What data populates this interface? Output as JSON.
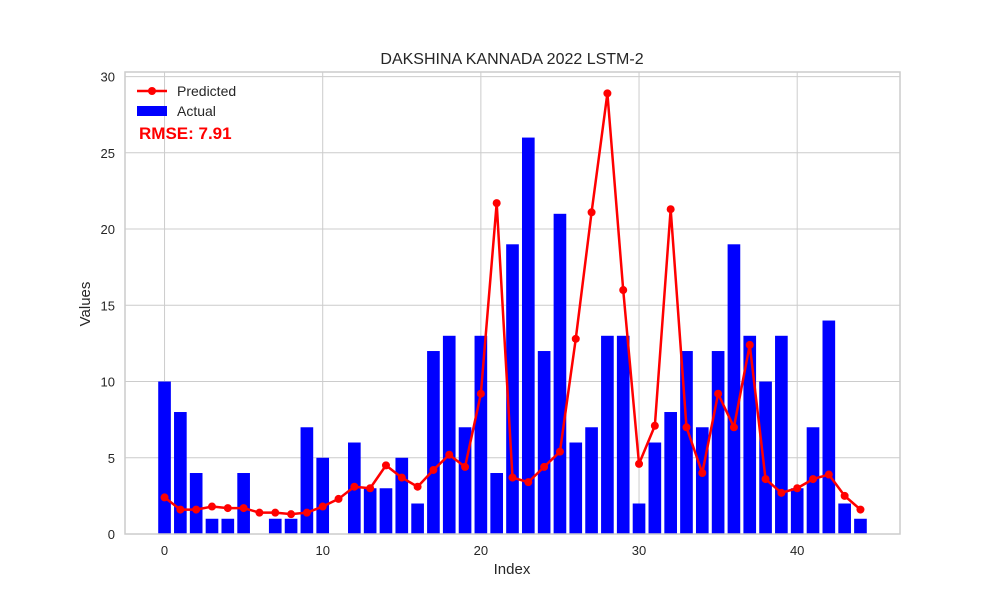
{
  "chart_data": {
    "type": "bar",
    "title": "DAKSHINA KANNADA 2022 LSTM-2",
    "xlabel": "Index",
    "ylabel": "Values",
    "xlim": [
      -2.5,
      46.5
    ],
    "ylim": [
      0,
      30.3
    ],
    "xticks": [
      0,
      10,
      20,
      30,
      40
    ],
    "yticks": [
      0,
      5,
      10,
      15,
      20,
      25,
      30
    ],
    "grid": true,
    "legend_position": "top-left",
    "annotation": "RMSE: 7.91",
    "series": [
      {
        "name": "Actual",
        "type": "bar",
        "color": "#0000ff",
        "x": [
          0,
          1,
          2,
          3,
          4,
          5,
          6,
          7,
          8,
          9,
          10,
          11,
          12,
          13,
          14,
          15,
          16,
          17,
          18,
          19,
          20,
          21,
          22,
          23,
          24,
          25,
          26,
          27,
          28,
          29,
          30,
          31,
          32,
          33,
          34,
          35,
          36,
          37,
          38,
          39,
          40,
          41,
          42,
          43,
          44
        ],
        "values": [
          10,
          8,
          4,
          1,
          1,
          4,
          0,
          1,
          1,
          7,
          5,
          0,
          6,
          3,
          3,
          5,
          2,
          12,
          13,
          7,
          13,
          4,
          19,
          26,
          12,
          21,
          6,
          7,
          13,
          13,
          2,
          6,
          8,
          12,
          7,
          12,
          19,
          13,
          10,
          13,
          3,
          7,
          14,
          2,
          1
        ]
      },
      {
        "name": "Predicted",
        "type": "line",
        "color": "#ff0000",
        "marker": "circle",
        "x": [
          0,
          1,
          2,
          3,
          4,
          5,
          6,
          7,
          8,
          9,
          10,
          11,
          12,
          13,
          14,
          15,
          16,
          17,
          18,
          19,
          20,
          21,
          22,
          23,
          24,
          25,
          26,
          27,
          28,
          29,
          30,
          31,
          32,
          33,
          34,
          35,
          36,
          37,
          38,
          39,
          40,
          41,
          42,
          43,
          44
        ],
        "values": [
          2.4,
          1.6,
          1.6,
          1.8,
          1.7,
          1.7,
          1.4,
          1.4,
          1.3,
          1.4,
          1.8,
          2.3,
          3.1,
          3.0,
          4.5,
          3.7,
          3.1,
          4.2,
          5.2,
          4.4,
          9.2,
          21.7,
          3.7,
          3.4,
          4.4,
          5.4,
          12.8,
          21.1,
          28.9,
          16.0,
          4.6,
          7.1,
          21.3,
          7.0,
          4.0,
          9.2,
          7.0,
          12.4,
          3.6,
          2.7,
          3.0,
          3.6,
          3.9,
          2.5,
          1.6
        ]
      }
    ]
  }
}
